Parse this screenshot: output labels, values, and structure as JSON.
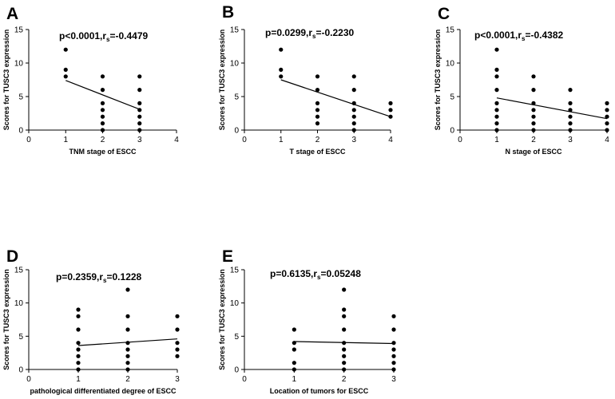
{
  "chart_data": [
    {
      "type": "scatter",
      "panel_label": "A",
      "stat": {
        "p": "p<0.0001",
        "r": "r",
        "r_sub": "s",
        "r_val": "=-0.4479"
      },
      "ylabel": "Scores for TUSC3 expression",
      "xlabel": "TNM  stage of ESCC",
      "xlim": [
        0,
        4
      ],
      "ylim": [
        0,
        15
      ],
      "xticks": [
        0,
        1,
        2,
        3,
        4
      ],
      "yticks": [
        0,
        5,
        10,
        15
      ],
      "points": [
        {
          "x": 1,
          "y": 8
        },
        {
          "x": 1,
          "y": 9
        },
        {
          "x": 1,
          "y": 12
        },
        {
          "x": 2,
          "y": 0
        },
        {
          "x": 2,
          "y": 1
        },
        {
          "x": 2,
          "y": 2
        },
        {
          "x": 2,
          "y": 3
        },
        {
          "x": 2,
          "y": 4
        },
        {
          "x": 2,
          "y": 6
        },
        {
          "x": 2,
          "y": 8
        },
        {
          "x": 3,
          "y": 0
        },
        {
          "x": 3,
          "y": 1
        },
        {
          "x": 3,
          "y": 2
        },
        {
          "x": 3,
          "y": 3
        },
        {
          "x": 3,
          "y": 4
        },
        {
          "x": 3,
          "y": 6
        },
        {
          "x": 3,
          "y": 8
        }
      ],
      "fit": {
        "x": [
          1,
          3
        ],
        "y": [
          7.4,
          3.1
        ]
      }
    },
    {
      "type": "scatter",
      "panel_label": "B",
      "stat": {
        "p": "p=0.0299",
        "r": "r",
        "r_sub": "s",
        "r_val": "=-0.2230"
      },
      "ylabel": "Scores for TUSC3 expression",
      "xlabel": "T stage of ESCC",
      "xlim": [
        0,
        4
      ],
      "ylim": [
        0,
        15
      ],
      "xticks": [
        0,
        1,
        2,
        3,
        4
      ],
      "yticks": [
        0,
        5,
        10,
        15
      ],
      "points": [
        {
          "x": 1,
          "y": 8
        },
        {
          "x": 1,
          "y": 9
        },
        {
          "x": 1,
          "y": 12
        },
        {
          "x": 2,
          "y": 1
        },
        {
          "x": 2,
          "y": 2
        },
        {
          "x": 2,
          "y": 3
        },
        {
          "x": 2,
          "y": 4
        },
        {
          "x": 2,
          "y": 6
        },
        {
          "x": 2,
          "y": 8
        },
        {
          "x": 3,
          "y": 0
        },
        {
          "x": 3,
          "y": 1
        },
        {
          "x": 3,
          "y": 2
        },
        {
          "x": 3,
          "y": 3
        },
        {
          "x": 3,
          "y": 4
        },
        {
          "x": 3,
          "y": 6
        },
        {
          "x": 3,
          "y": 8
        },
        {
          "x": 4,
          "y": 2
        },
        {
          "x": 4,
          "y": 3
        },
        {
          "x": 4,
          "y": 4
        }
      ],
      "fit": {
        "x": [
          1,
          4
        ],
        "y": [
          7.5,
          2.0
        ]
      }
    },
    {
      "type": "scatter",
      "panel_label": "C",
      "stat": {
        "p": "p<0.0001",
        "r": "r",
        "r_sub": "s",
        "r_val": "=-0.4382"
      },
      "ylabel": "Scores for TUSC3 expression",
      "xlabel": "N stage of ESCC",
      "xlim": [
        0,
        4
      ],
      "ylim": [
        0,
        15
      ],
      "xticks": [
        0,
        1,
        2,
        3,
        4
      ],
      "yticks": [
        0,
        5,
        10,
        15
      ],
      "points": [
        {
          "x": 1,
          "y": 0
        },
        {
          "x": 1,
          "y": 1
        },
        {
          "x": 1,
          "y": 2
        },
        {
          "x": 1,
          "y": 3
        },
        {
          "x": 1,
          "y": 4
        },
        {
          "x": 1,
          "y": 6
        },
        {
          "x": 1,
          "y": 8
        },
        {
          "x": 1,
          "y": 9
        },
        {
          "x": 1,
          "y": 12
        },
        {
          "x": 2,
          "y": 0
        },
        {
          "x": 2,
          "y": 1
        },
        {
          "x": 2,
          "y": 2
        },
        {
          "x": 2,
          "y": 3
        },
        {
          "x": 2,
          "y": 4
        },
        {
          "x": 2,
          "y": 6
        },
        {
          "x": 2,
          "y": 8
        },
        {
          "x": 3,
          "y": 0
        },
        {
          "x": 3,
          "y": 1
        },
        {
          "x": 3,
          "y": 2
        },
        {
          "x": 3,
          "y": 3
        },
        {
          "x": 3,
          "y": 4
        },
        {
          "x": 3,
          "y": 6
        },
        {
          "x": 4,
          "y": 0
        },
        {
          "x": 4,
          "y": 1
        },
        {
          "x": 4,
          "y": 2
        },
        {
          "x": 4,
          "y": 3
        },
        {
          "x": 4,
          "y": 4
        }
      ],
      "fit": {
        "x": [
          1,
          4
        ],
        "y": [
          4.8,
          1.7
        ]
      }
    },
    {
      "type": "scatter",
      "panel_label": "D",
      "stat": {
        "p": "p=0.2359",
        "r": "r",
        "r_sub": "s",
        "r_val": "=0.1228"
      },
      "ylabel": "Scores for TUSC3 expression",
      "xlabel": "pathological differentiated degree of ESCC",
      "xlim": [
        0,
        3
      ],
      "ylim": [
        0,
        15
      ],
      "xticks": [
        0,
        1,
        2,
        3
      ],
      "yticks": [
        0,
        5,
        10,
        15
      ],
      "points": [
        {
          "x": 1,
          "y": 0
        },
        {
          "x": 1,
          "y": 1
        },
        {
          "x": 1,
          "y": 2
        },
        {
          "x": 1,
          "y": 3
        },
        {
          "x": 1,
          "y": 4
        },
        {
          "x": 1,
          "y": 6
        },
        {
          "x": 1,
          "y": 8
        },
        {
          "x": 1,
          "y": 9
        },
        {
          "x": 2,
          "y": 0
        },
        {
          "x": 2,
          "y": 1
        },
        {
          "x": 2,
          "y": 2
        },
        {
          "x": 2,
          "y": 3
        },
        {
          "x": 2,
          "y": 4
        },
        {
          "x": 2,
          "y": 6
        },
        {
          "x": 2,
          "y": 8
        },
        {
          "x": 2,
          "y": 12
        },
        {
          "x": 3,
          "y": 2
        },
        {
          "x": 3,
          "y": 3
        },
        {
          "x": 3,
          "y": 4
        },
        {
          "x": 3,
          "y": 6
        },
        {
          "x": 3,
          "y": 8
        }
      ],
      "fit": {
        "x": [
          1,
          3
        ],
        "y": [
          3.6,
          4.6
        ]
      }
    },
    {
      "type": "scatter",
      "panel_label": "E",
      "stat": {
        "p": "p=0.6135",
        "r": "r",
        "r_sub": "s",
        "r_val": "=0.05248"
      },
      "ylabel": "Scores for TUSC3 expression",
      "xlabel": "Location of tumors for ESCC",
      "xlim": [
        0,
        3
      ],
      "ylim": [
        0,
        15
      ],
      "xticks": [
        0,
        1,
        2,
        3
      ],
      "yticks": [
        0,
        5,
        10,
        15
      ],
      "points": [
        {
          "x": 1,
          "y": 0
        },
        {
          "x": 1,
          "y": 1
        },
        {
          "x": 1,
          "y": 3
        },
        {
          "x": 1,
          "y": 4
        },
        {
          "x": 1,
          "y": 6
        },
        {
          "x": 2,
          "y": 0
        },
        {
          "x": 2,
          "y": 1
        },
        {
          "x": 2,
          "y": 2
        },
        {
          "x": 2,
          "y": 3
        },
        {
          "x": 2,
          "y": 4
        },
        {
          "x": 2,
          "y": 6
        },
        {
          "x": 2,
          "y": 8
        },
        {
          "x": 2,
          "y": 9
        },
        {
          "x": 2,
          "y": 12
        },
        {
          "x": 3,
          "y": 0
        },
        {
          "x": 3,
          "y": 1
        },
        {
          "x": 3,
          "y": 2
        },
        {
          "x": 3,
          "y": 3
        },
        {
          "x": 3,
          "y": 4
        },
        {
          "x": 3,
          "y": 6
        },
        {
          "x": 3,
          "y": 8
        }
      ],
      "fit": {
        "x": [
          1,
          3
        ],
        "y": [
          4.2,
          3.9
        ]
      }
    }
  ]
}
